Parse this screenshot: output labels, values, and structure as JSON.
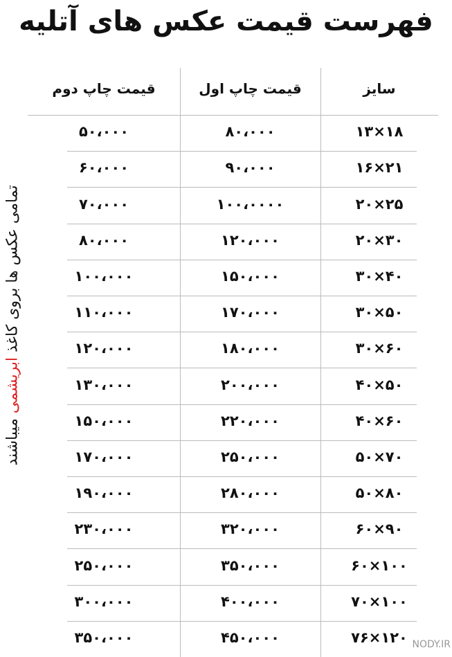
{
  "header": {
    "title": "فهرست قیمت عکس های آتلیه"
  },
  "table": {
    "columns": [
      "سایز",
      "قیمت چاپ اول",
      "قیمت چاپ دوم"
    ],
    "rows": [
      [
        "۱۳×۱۸",
        "۸۰،۰۰۰",
        "۵۰،۰۰۰"
      ],
      [
        "۱۶×۲۱",
        "۹۰،۰۰۰",
        "۶۰،۰۰۰"
      ],
      [
        "۲۰×۲۵",
        "۱۰۰،۰۰۰۰",
        "۷۰،۰۰۰"
      ],
      [
        "۲۰×۳۰",
        "۱۲۰،۰۰۰",
        "۸۰،۰۰۰"
      ],
      [
        "۳۰×۴۰",
        "۱۵۰،۰۰۰",
        "۱۰۰،۰۰۰"
      ],
      [
        "۳۰×۵۰",
        "۱۷۰،۰۰۰",
        "۱۱۰،۰۰۰"
      ],
      [
        "۳۰×۶۰",
        "۱۸۰،۰۰۰",
        "۱۲۰،۰۰۰"
      ],
      [
        "۴۰×۵۰",
        "۲۰۰،۰۰۰",
        "۱۳۰،۰۰۰"
      ],
      [
        "۴۰×۶۰",
        "۲۲۰،۰۰۰",
        "۱۵۰،۰۰۰"
      ],
      [
        "۵۰×۷۰",
        "۲۵۰،۰۰۰",
        "۱۷۰،۰۰۰"
      ],
      [
        "۵۰×۸۰",
        "۲۸۰،۰۰۰",
        "۱۹۰،۰۰۰"
      ],
      [
        "۶۰×۹۰",
        "۳۲۰،۰۰۰",
        "۲۳۰،۰۰۰"
      ],
      [
        "۶۰×۱۰۰",
        "۳۵۰،۰۰۰",
        "۲۵۰،۰۰۰"
      ],
      [
        "۷۰×۱۰۰",
        "۴۰۰،۰۰۰",
        "۳۰۰،۰۰۰"
      ],
      [
        "۷۶×۱۲۰",
        "۴۵۰،۰۰۰",
        "۳۵۰،۰۰۰"
      ]
    ]
  },
  "side_note": {
    "before": "تمامی عکس ها بروی کاغذ",
    "highlight": "ابریشمی",
    "after": "میباشند"
  },
  "watermark": "NODY.IR"
}
